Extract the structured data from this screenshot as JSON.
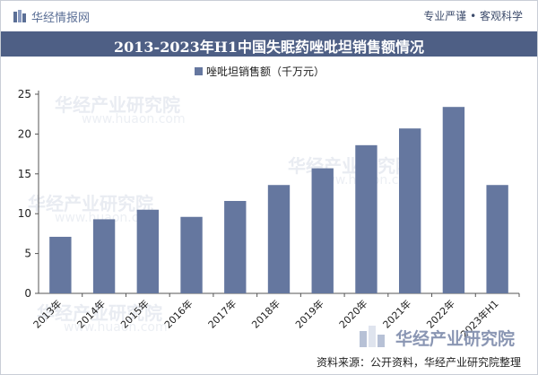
{
  "header": {
    "brand": "华经情报网",
    "slogan": "专业严谨 • 客观科学"
  },
  "footer": {
    "source": "资料来源：公开资料，华经产业研究院整理"
  },
  "watermark": {
    "text": "华经产业研究院",
    "url": "www.huaon.com"
  },
  "colors": {
    "bar": "#65779f",
    "title_bg": "#4e5f85",
    "axis": "#555555"
  },
  "chart_data": {
    "type": "bar",
    "title": "2013-2023年H1中国失眠药唑吡坦销售额情况",
    "categories": [
      "2013年",
      "2014年",
      "2015年",
      "2016年",
      "2017年",
      "2018年",
      "2019年",
      "2020年",
      "2021年",
      "2022年",
      "2023年H1"
    ],
    "series": [
      {
        "name": "唑吡坦销售额（千万元）",
        "values": [
          7.1,
          9.3,
          10.5,
          9.6,
          11.6,
          13.6,
          15.7,
          18.6,
          20.7,
          23.4,
          13.6
        ]
      }
    ],
    "ylim": [
      0,
      25
    ],
    "yticks": [
      0,
      5,
      10,
      15,
      20,
      25
    ],
    "xlabel": "",
    "ylabel": "",
    "grid": false,
    "legend_position": "top-left"
  }
}
